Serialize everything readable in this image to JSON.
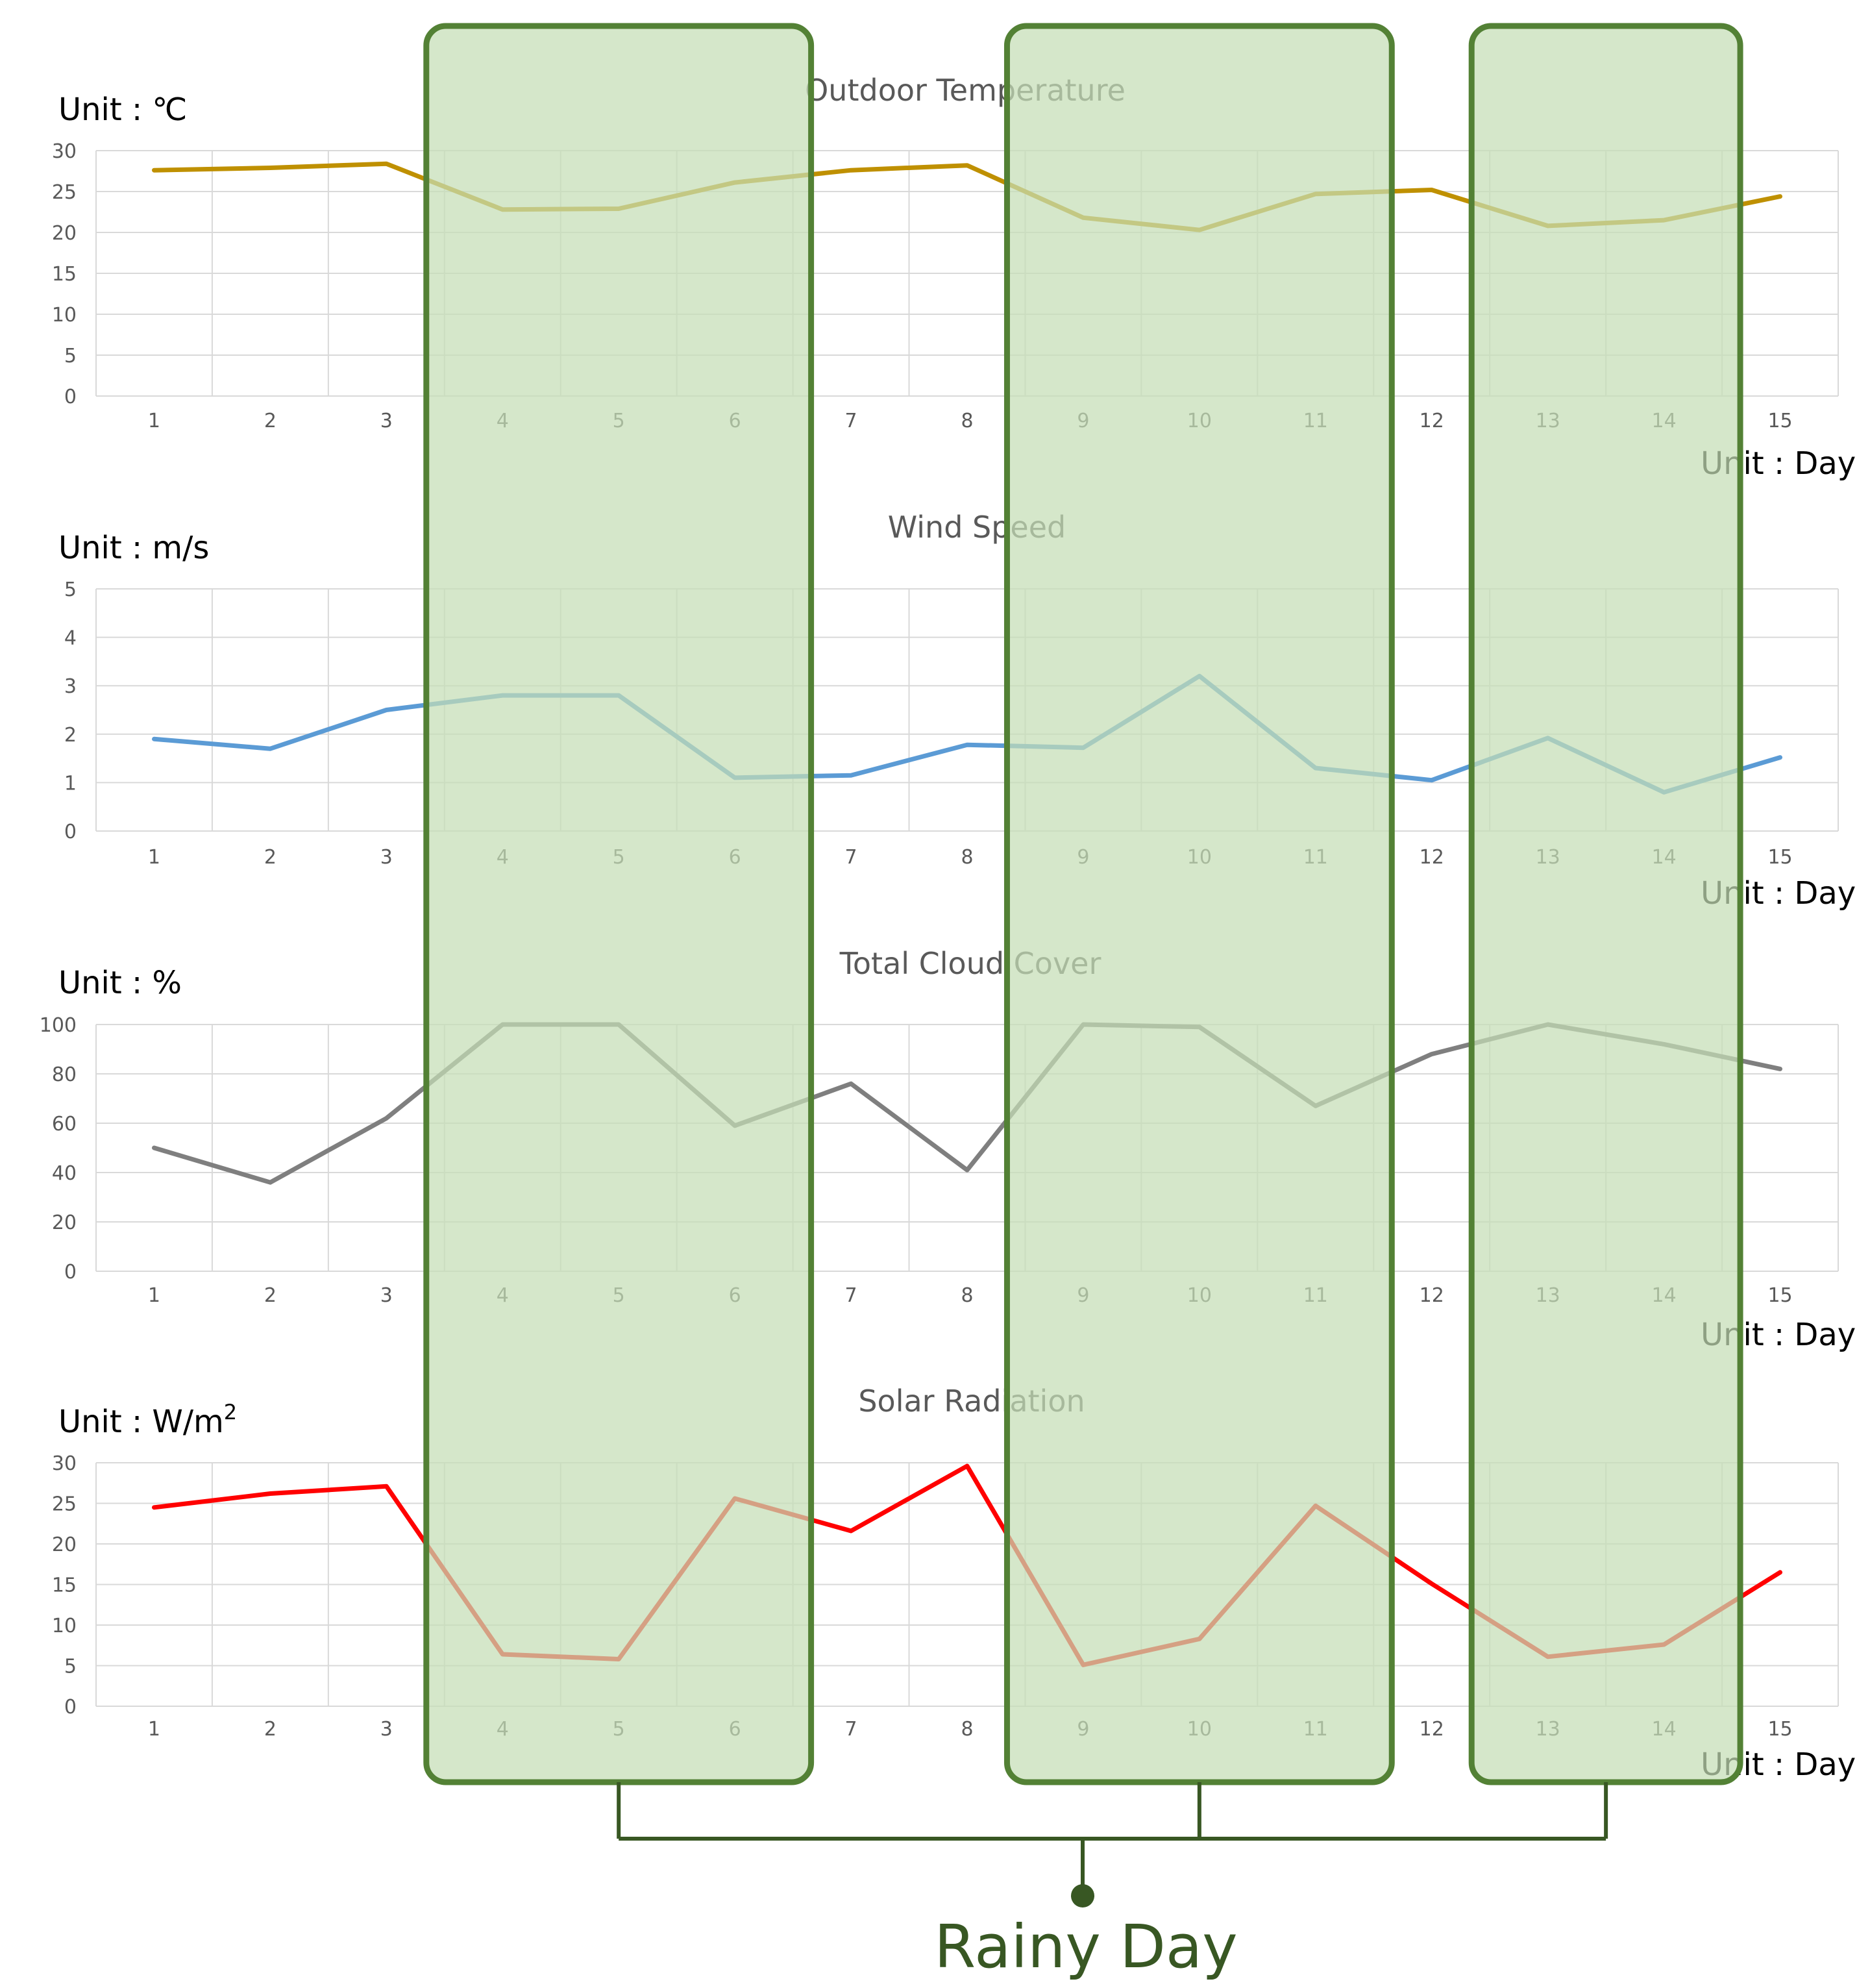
{
  "colors": {
    "temperature": "#BF9000",
    "wind": "#5B9BD5",
    "cloud": "#7F7F7F",
    "solar": "#FF0000",
    "rainy_fill": "#C5DEB5",
    "rainy_stroke": "#538135",
    "rainy_text": "#385723"
  },
  "annotation": {
    "label": "Rainy Day",
    "periods": [
      [
        4,
        6
      ],
      [
        9,
        11
      ],
      [
        13,
        14
      ]
    ]
  },
  "chart_data": [
    {
      "id": "temperature",
      "type": "line",
      "title": "Outdoor Temperature",
      "ylabel": "Unit : ℃",
      "xlabel": "Unit : Day",
      "x": [
        1,
        2,
        3,
        4,
        5,
        6,
        7,
        8,
        9,
        10,
        11,
        12,
        13,
        14,
        15
      ],
      "values": [
        27.6,
        27.9,
        28.4,
        22.8,
        22.9,
        26.1,
        27.6,
        28.2,
        21.8,
        20.3,
        24.7,
        25.2,
        20.8,
        21.5,
        24.4
      ],
      "ylim": [
        0,
        30
      ],
      "yticks": [
        0,
        5,
        10,
        15,
        20,
        25,
        30
      ],
      "grid": true,
      "legend": "none"
    },
    {
      "id": "wind",
      "type": "line",
      "title": "Wind Speed",
      "ylabel": "Unit : m/s",
      "xlabel": "Unit : Day",
      "x": [
        1,
        2,
        3,
        4,
        5,
        6,
        7,
        8,
        9,
        10,
        11,
        12,
        13,
        14,
        15
      ],
      "values": [
        1.9,
        1.7,
        2.5,
        2.8,
        2.8,
        1.1,
        1.15,
        1.78,
        1.72,
        3.2,
        1.3,
        1.05,
        1.92,
        0.8,
        1.52
      ],
      "ylim": [
        0,
        5
      ],
      "yticks": [
        0,
        1,
        2,
        3,
        4,
        5
      ],
      "grid": true,
      "legend": "none"
    },
    {
      "id": "cloud",
      "type": "line",
      "title": "Total Cloud Cover",
      "ylabel": "Unit : %",
      "xlabel": "Unit : Day",
      "x": [
        1,
        2,
        3,
        4,
        5,
        6,
        7,
        8,
        9,
        10,
        11,
        12,
        13,
        14,
        15
      ],
      "values": [
        50,
        36,
        62,
        100,
        100,
        59,
        76,
        41,
        100,
        99,
        67,
        88,
        100,
        92,
        82
      ],
      "ylim": [
        0,
        100
      ],
      "yticks": [
        0,
        20,
        40,
        60,
        80,
        100
      ],
      "grid": true,
      "legend": "none"
    },
    {
      "id": "solar",
      "type": "line",
      "title": "Solar Radiation",
      "ylabel_prefix": "Unit : W/m",
      "ylabel_sup": "2",
      "xlabel": "Unit : Day",
      "x": [
        1,
        2,
        3,
        4,
        5,
        6,
        7,
        8,
        9,
        10,
        11,
        12,
        13,
        14,
        15
      ],
      "values": [
        24.5,
        26.2,
        27.1,
        6.4,
        5.8,
        25.6,
        21.6,
        29.6,
        5.1,
        8.3,
        24.7,
        15.1,
        6.1,
        7.6,
        16.5
      ],
      "ylim": [
        0,
        30
      ],
      "yticks": [
        0,
        5,
        10,
        15,
        20,
        25,
        30
      ],
      "grid": true,
      "legend": "none"
    }
  ]
}
